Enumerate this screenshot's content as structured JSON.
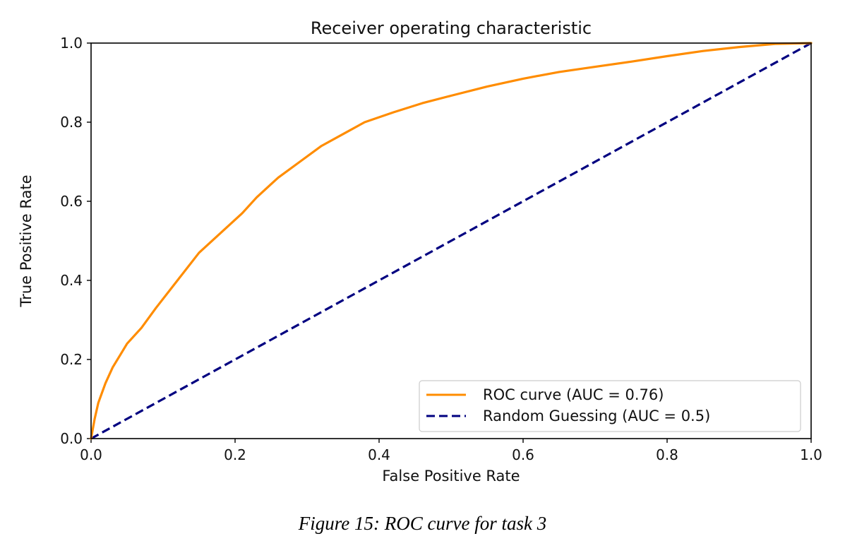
{
  "chart_data": {
    "type": "line",
    "title": "Receiver operating characteristic",
    "xlabel": "False Positive Rate",
    "ylabel": "True Positive Rate",
    "xlim": [
      0.0,
      1.0
    ],
    "ylim": [
      0.0,
      1.0
    ],
    "x_ticks": [
      "0.0",
      "0.2",
      "0.4",
      "0.6",
      "0.8",
      "1.0"
    ],
    "y_ticks": [
      "0.0",
      "0.2",
      "0.4",
      "0.6",
      "0.8",
      "1.0"
    ],
    "grid": false,
    "legend_position": "bottom-right",
    "series": [
      {
        "name": "ROC curve (AUC = 0.76)",
        "color": "#ff8c00",
        "style": "solid",
        "x": [
          0.0,
          0.005,
          0.01,
          0.02,
          0.03,
          0.04,
          0.05,
          0.07,
          0.09,
          0.12,
          0.15,
          0.18,
          0.21,
          0.23,
          0.26,
          0.29,
          0.32,
          0.35,
          0.38,
          0.42,
          0.46,
          0.5,
          0.55,
          0.6,
          0.65,
          0.7,
          0.75,
          0.8,
          0.85,
          0.9,
          0.95,
          1.0
        ],
        "y": [
          0.0,
          0.05,
          0.09,
          0.14,
          0.18,
          0.21,
          0.24,
          0.28,
          0.33,
          0.4,
          0.47,
          0.52,
          0.57,
          0.61,
          0.66,
          0.7,
          0.74,
          0.77,
          0.8,
          0.825,
          0.848,
          0.867,
          0.89,
          0.91,
          0.927,
          0.94,
          0.953,
          0.967,
          0.98,
          0.99,
          0.998,
          1.0
        ]
      },
      {
        "name": "Random Guessing (AUC = 0.5)",
        "color": "#000080",
        "style": "dashed",
        "x": [
          0.0,
          1.0
        ],
        "y": [
          0.0,
          1.0
        ]
      }
    ]
  },
  "caption": "Figure 15: ROC curve for task 3"
}
